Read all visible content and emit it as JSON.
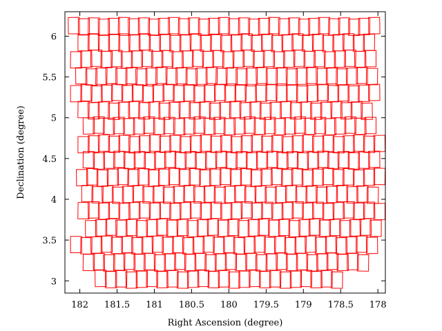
{
  "chart_data": {
    "type": "scatter",
    "marker": "rectangle-footprints",
    "xlabel": "Right Ascension (degree)",
    "ylabel": "Declination (degree)",
    "xlim": [
      182.2,
      177.9
    ],
    "ylim": [
      2.85,
      6.3
    ],
    "x_reversed": true,
    "x_ticks": [
      "182",
      "181.5",
      "181",
      "180.5",
      "180",
      "179.5",
      "179",
      "178.5",
      "178"
    ],
    "y_ticks": [
      "3",
      "3.5",
      "4",
      "4.5",
      "5",
      "5.5",
      "6"
    ],
    "footprint_color": "#ff0000",
    "footprint_size": {
      "ra": 0.15,
      "dec": 0.2
    },
    "rows": [
      {
        "dec": 6.12,
        "ra_start": 182.08,
        "ra_end": 178.05
      },
      {
        "dec": 5.92,
        "ra_start": 181.95,
        "ra_end": 178.12
      },
      {
        "dec": 5.72,
        "ra_start": 182.05,
        "ra_end": 178.1
      },
      {
        "dec": 5.51,
        "ra_start": 181.98,
        "ra_end": 178.08
      },
      {
        "dec": 5.3,
        "ra_start": 182.05,
        "ra_end": 178.05
      },
      {
        "dec": 5.09,
        "ra_start": 181.95,
        "ra_end": 178.15
      },
      {
        "dec": 4.9,
        "ra_start": 181.88,
        "ra_end": 178.1
      },
      {
        "dec": 4.68,
        "ra_start": 181.95,
        "ra_end": 177.98
      },
      {
        "dec": 4.48,
        "ra_start": 181.88,
        "ra_end": 178.05
      },
      {
        "dec": 4.27,
        "ra_start": 181.97,
        "ra_end": 177.98
      },
      {
        "dec": 4.06,
        "ra_start": 181.9,
        "ra_end": 178.07
      },
      {
        "dec": 3.86,
        "ra_start": 181.95,
        "ra_end": 177.98
      },
      {
        "dec": 3.65,
        "ra_start": 181.85,
        "ra_end": 178.03
      },
      {
        "dec": 3.44,
        "ra_start": 182.05,
        "ra_end": 178.08
      },
      {
        "dec": 3.23,
        "ra_start": 181.88,
        "ra_end": 178.2
      },
      {
        "dec": 3.02,
        "ra_start": 181.72,
        "ra_end": 178.55
      }
    ]
  }
}
